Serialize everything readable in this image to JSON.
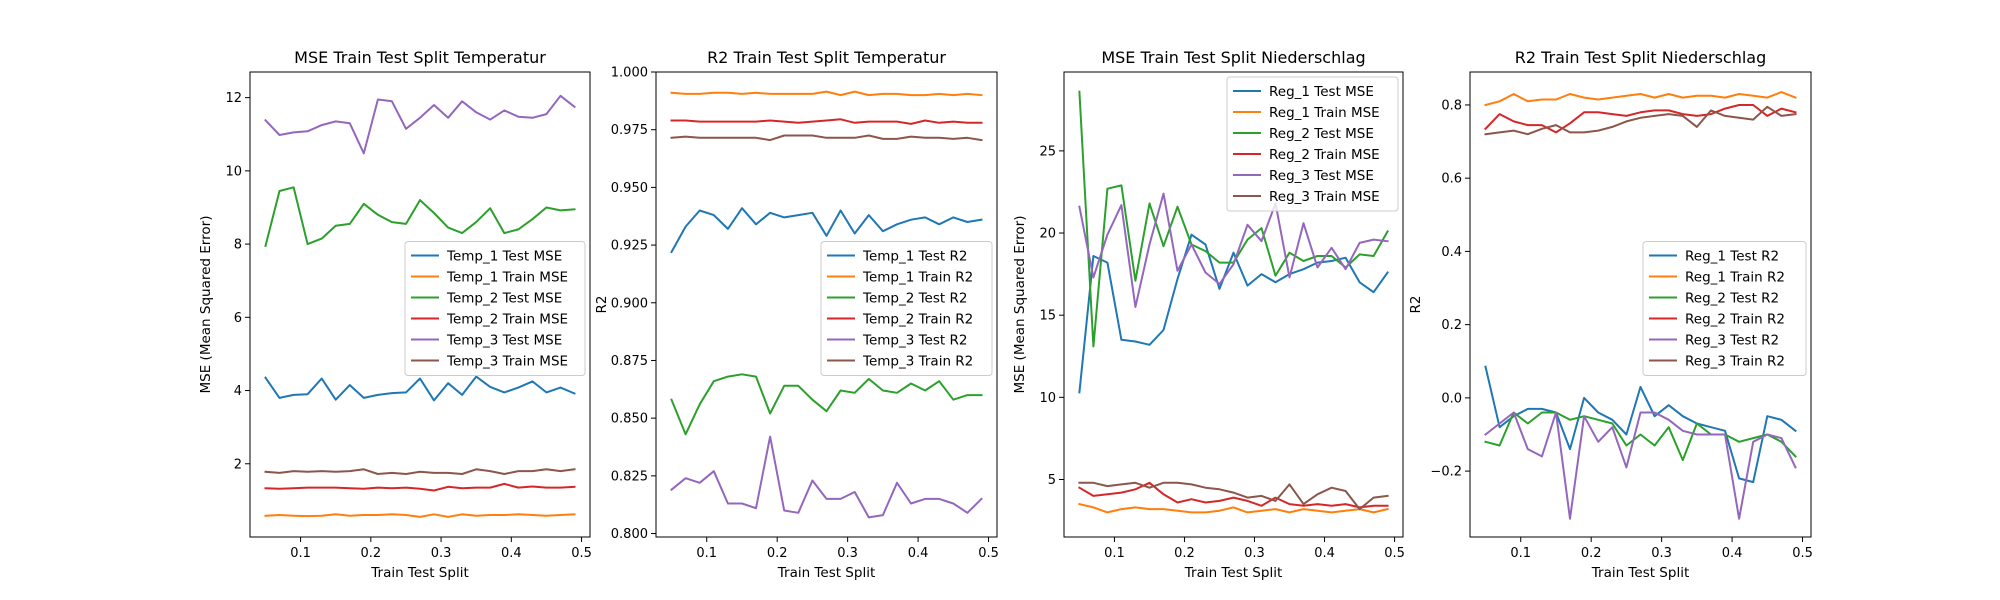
{
  "figure": {
    "background": "#ffffff"
  },
  "colors": {
    "tab_blue": "#1f77b4",
    "tab_orange": "#ff7f0e",
    "tab_green": "#2ca02c",
    "tab_red": "#d62728",
    "tab_purple": "#9467bd",
    "tab_brown": "#8c564b"
  },
  "chart_data": [
    {
      "type": "line",
      "title": "MSE Train Test Split Temperatur",
      "xlabel": "Train Test Split",
      "ylabel": "MSE (Mean Squared Error)",
      "xlim": [
        0.028,
        0.512
      ],
      "ylim": [
        0.0,
        12.7
      ],
      "xticks": [
        0.1,
        0.2,
        0.3,
        0.4,
        0.5
      ],
      "xtick_labels": [
        "0.1",
        "0.2",
        "0.3",
        "0.4",
        "0.5"
      ],
      "yticks": [
        2,
        4,
        6,
        8,
        10,
        12
      ],
      "ytick_labels": [
        "2",
        "4",
        "6",
        "8",
        "10",
        "12"
      ],
      "grid": false,
      "legend_position": "center-right",
      "x": [
        0.05,
        0.07,
        0.09,
        0.11,
        0.13,
        0.15,
        0.17,
        0.19,
        0.21,
        0.23,
        0.25,
        0.27,
        0.29,
        0.31,
        0.33,
        0.35,
        0.37,
        0.39,
        0.41,
        0.43,
        0.45,
        0.47,
        0.49
      ],
      "series": [
        {
          "name": "Temp_1 Test MSE",
          "color": "#1f77b4",
          "values": [
            4.35,
            3.8,
            3.88,
            3.9,
            4.33,
            3.75,
            4.15,
            3.8,
            3.88,
            3.93,
            3.95,
            4.33,
            3.73,
            4.2,
            3.88,
            4.38,
            4.1,
            3.95,
            4.08,
            4.25,
            3.95,
            4.08,
            3.92
          ]
        },
        {
          "name": "Temp_1 Train MSE",
          "color": "#ff7f0e",
          "values": [
            0.58,
            0.6,
            0.58,
            0.57,
            0.58,
            0.62,
            0.58,
            0.6,
            0.6,
            0.62,
            0.6,
            0.55,
            0.62,
            0.55,
            0.62,
            0.58,
            0.6,
            0.6,
            0.62,
            0.6,
            0.58,
            0.6,
            0.62
          ]
        },
        {
          "name": "Temp_2 Test MSE",
          "color": "#2ca02c",
          "values": [
            7.95,
            9.45,
            9.55,
            8.0,
            8.15,
            8.5,
            8.55,
            9.1,
            8.8,
            8.6,
            8.55,
            9.2,
            8.85,
            8.45,
            8.3,
            8.6,
            8.98,
            8.3,
            8.4,
            8.68,
            9.0,
            8.92,
            8.95
          ]
        },
        {
          "name": "Temp_2 Train MSE",
          "color": "#d62728",
          "values": [
            1.33,
            1.32,
            1.33,
            1.35,
            1.35,
            1.35,
            1.33,
            1.32,
            1.35,
            1.33,
            1.35,
            1.32,
            1.27,
            1.37,
            1.33,
            1.35,
            1.35,
            1.45,
            1.35,
            1.38,
            1.35,
            1.35,
            1.37
          ]
        },
        {
          "name": "Temp_3 Test MSE",
          "color": "#9467bd",
          "values": [
            11.38,
            10.98,
            11.05,
            11.08,
            11.25,
            11.35,
            11.3,
            10.48,
            11.95,
            11.9,
            11.15,
            11.45,
            11.8,
            11.45,
            11.9,
            11.6,
            11.4,
            11.65,
            11.48,
            11.45,
            11.55,
            12.05,
            11.75
          ]
        },
        {
          "name": "Temp_3 Train MSE",
          "color": "#8c564b",
          "values": [
            1.78,
            1.75,
            1.8,
            1.78,
            1.8,
            1.78,
            1.8,
            1.85,
            1.72,
            1.75,
            1.72,
            1.78,
            1.75,
            1.75,
            1.72,
            1.85,
            1.8,
            1.72,
            1.8,
            1.8,
            1.85,
            1.8,
            1.85
          ]
        }
      ]
    },
    {
      "type": "line",
      "title": "R2 Train Test Split Temperatur",
      "xlabel": "Train Test Split",
      "ylabel": "R2",
      "xlim": [
        0.028,
        0.512
      ],
      "ylim": [
        0.7985,
        1.0
      ],
      "xticks": [
        0.1,
        0.2,
        0.3,
        0.4,
        0.5
      ],
      "xtick_labels": [
        "0.1",
        "0.2",
        "0.3",
        "0.4",
        "0.5"
      ],
      "yticks": [
        0.8,
        0.825,
        0.85,
        0.875,
        0.9,
        0.925,
        0.95,
        0.975,
        1.0
      ],
      "ytick_labels": [
        "0.800",
        "0.825",
        "0.850",
        "0.875",
        "0.900",
        "0.925",
        "0.950",
        "0.975",
        "1.000"
      ],
      "grid": false,
      "legend_position": "center-right",
      "x": [
        0.05,
        0.07,
        0.09,
        0.11,
        0.13,
        0.15,
        0.17,
        0.19,
        0.21,
        0.23,
        0.25,
        0.27,
        0.29,
        0.31,
        0.33,
        0.35,
        0.37,
        0.39,
        0.41,
        0.43,
        0.45,
        0.47,
        0.49
      ],
      "series": [
        {
          "name": "Temp_1 Test R2",
          "color": "#1f77b4",
          "values": [
            0.922,
            0.933,
            0.94,
            0.938,
            0.932,
            0.941,
            0.934,
            0.939,
            0.937,
            0.938,
            0.939,
            0.929,
            0.94,
            0.93,
            0.938,
            0.931,
            0.934,
            0.936,
            0.937,
            0.934,
            0.937,
            0.935,
            0.936
          ]
        },
        {
          "name": "Temp_1 Train R2",
          "color": "#ff7f0e",
          "values": [
            0.991,
            0.9905,
            0.9905,
            0.991,
            0.991,
            0.9905,
            0.991,
            0.9905,
            0.9905,
            0.9905,
            0.9905,
            0.9915,
            0.99,
            0.9915,
            0.99,
            0.9905,
            0.9905,
            0.99,
            0.99,
            0.9905,
            0.99,
            0.9905,
            0.99
          ]
        },
        {
          "name": "Temp_2 Test R2",
          "color": "#2ca02c",
          "values": [
            0.858,
            0.843,
            0.856,
            0.866,
            0.868,
            0.869,
            0.868,
            0.852,
            0.864,
            0.864,
            0.858,
            0.853,
            0.862,
            0.861,
            0.867,
            0.862,
            0.861,
            0.865,
            0.862,
            0.866,
            0.858,
            0.86,
            0.86
          ]
        },
        {
          "name": "Temp_2 Train R2",
          "color": "#d62728",
          "values": [
            0.979,
            0.979,
            0.9785,
            0.9785,
            0.9785,
            0.9785,
            0.9785,
            0.979,
            0.9785,
            0.978,
            0.9785,
            0.979,
            0.9795,
            0.978,
            0.9785,
            0.9785,
            0.9785,
            0.9775,
            0.979,
            0.978,
            0.9785,
            0.978,
            0.978
          ]
        },
        {
          "name": "Temp_3 Test R2",
          "color": "#9467bd",
          "values": [
            0.819,
            0.824,
            0.822,
            0.827,
            0.813,
            0.813,
            0.811,
            0.842,
            0.81,
            0.809,
            0.823,
            0.815,
            0.815,
            0.818,
            0.807,
            0.808,
            0.822,
            0.813,
            0.815,
            0.815,
            0.813,
            0.809,
            0.815
          ]
        },
        {
          "name": "Temp_3 Train R2",
          "color": "#8c564b",
          "values": [
            0.9715,
            0.972,
            0.9715,
            0.9715,
            0.9715,
            0.9715,
            0.9715,
            0.9705,
            0.9725,
            0.9725,
            0.9725,
            0.9715,
            0.9715,
            0.9715,
            0.9725,
            0.971,
            0.971,
            0.972,
            0.9715,
            0.9715,
            0.971,
            0.9715,
            0.9705
          ]
        }
      ]
    },
    {
      "type": "line",
      "title": "MSE Train Test Split Niederschlag",
      "xlabel": "Train Test Split",
      "ylabel": "MSE (Mean Squared Error)",
      "xlim": [
        0.028,
        0.512
      ],
      "ylim": [
        1.5,
        29.8
      ],
      "xticks": [
        0.1,
        0.2,
        0.3,
        0.4,
        0.5
      ],
      "xtick_labels": [
        "0.1",
        "0.2",
        "0.3",
        "0.4",
        "0.5"
      ],
      "yticks": [
        5,
        10,
        15,
        20,
        25
      ],
      "ytick_labels": [
        "5",
        "10",
        "15",
        "20",
        "25"
      ],
      "grid": false,
      "legend_position": "top-right",
      "x": [
        0.05,
        0.07,
        0.09,
        0.11,
        0.13,
        0.15,
        0.17,
        0.19,
        0.21,
        0.23,
        0.25,
        0.27,
        0.29,
        0.31,
        0.33,
        0.35,
        0.37,
        0.39,
        0.41,
        0.43,
        0.45,
        0.47,
        0.49
      ],
      "series": [
        {
          "name": "Reg_1 Test MSE",
          "color": "#1f77b4",
          "values": [
            10.3,
            18.6,
            18.2,
            13.5,
            13.4,
            13.2,
            14.1,
            17.2,
            19.9,
            19.3,
            16.6,
            18.8,
            16.8,
            17.5,
            17.0,
            17.5,
            17.8,
            18.2,
            18.3,
            18.5,
            17.0,
            16.4,
            17.6
          ]
        },
        {
          "name": "Reg_1 Train MSE",
          "color": "#ff7f0e",
          "values": [
            3.5,
            3.3,
            3.0,
            3.2,
            3.3,
            3.2,
            3.2,
            3.1,
            3.0,
            3.0,
            3.1,
            3.3,
            3.0,
            3.1,
            3.2,
            3.0,
            3.2,
            3.1,
            3.0,
            3.1,
            3.2,
            3.0,
            3.2
          ]
        },
        {
          "name": "Reg_2 Test MSE",
          "color": "#2ca02c",
          "values": [
            28.6,
            13.1,
            22.7,
            22.9,
            17.1,
            21.8,
            19.2,
            21.6,
            19.3,
            18.9,
            18.2,
            18.2,
            19.6,
            20.3,
            17.4,
            18.8,
            18.3,
            18.6,
            18.6,
            17.9,
            18.7,
            18.6,
            20.1
          ]
        },
        {
          "name": "Reg_2 Train MSE",
          "color": "#d62728",
          "values": [
            4.5,
            4.0,
            4.1,
            4.2,
            4.4,
            4.8,
            4.1,
            3.6,
            3.8,
            3.6,
            3.7,
            3.9,
            3.7,
            3.4,
            3.9,
            3.5,
            3.4,
            3.5,
            3.4,
            3.5,
            3.3,
            3.4,
            3.4
          ]
        },
        {
          "name": "Reg_3 Test MSE",
          "color": "#9467bd",
          "values": [
            21.6,
            17.3,
            19.9,
            21.7,
            15.5,
            19.3,
            22.4,
            17.7,
            19.3,
            17.6,
            16.9,
            18.1,
            20.5,
            19.5,
            21.8,
            17.3,
            20.6,
            17.9,
            19.1,
            17.8,
            19.4,
            19.6,
            19.5
          ]
        },
        {
          "name": "Reg_3 Train MSE",
          "color": "#8c564b",
          "values": [
            4.8,
            4.8,
            4.6,
            4.7,
            4.8,
            4.5,
            4.8,
            4.8,
            4.7,
            4.5,
            4.4,
            4.2,
            3.9,
            4.0,
            3.7,
            4.7,
            3.5,
            4.1,
            4.5,
            4.3,
            3.2,
            3.9,
            4.0
          ]
        }
      ]
    },
    {
      "type": "line",
      "title": "R2 Train Test Split Niederschlag",
      "xlabel": "Train Test Split",
      "ylabel": "R2",
      "xlim": [
        0.028,
        0.512
      ],
      "ylim": [
        -0.38,
        0.89
      ],
      "xticks": [
        0.1,
        0.2,
        0.3,
        0.4,
        0.5
      ],
      "xtick_labels": [
        "0.1",
        "0.2",
        "0.3",
        "0.4",
        "0.5"
      ],
      "yticks": [
        -0.2,
        0.0,
        0.2,
        0.4,
        0.6,
        0.8
      ],
      "ytick_labels": [
        "−0.2",
        "0.0",
        "0.2",
        "0.4",
        "0.6",
        "0.8"
      ],
      "grid": false,
      "legend_position": "center-right",
      "x": [
        0.05,
        0.07,
        0.09,
        0.11,
        0.13,
        0.15,
        0.17,
        0.19,
        0.21,
        0.23,
        0.25,
        0.27,
        0.29,
        0.31,
        0.33,
        0.35,
        0.37,
        0.39,
        0.41,
        0.43,
        0.45,
        0.47,
        0.49
      ],
      "series": [
        {
          "name": "Reg_1 Test R2",
          "color": "#1f77b4",
          "values": [
            0.085,
            -0.08,
            -0.05,
            -0.03,
            -0.03,
            -0.04,
            -0.14,
            -0.0,
            -0.04,
            -0.06,
            -0.1,
            0.03,
            -0.05,
            -0.02,
            -0.05,
            -0.07,
            -0.08,
            -0.09,
            -0.22,
            -0.23,
            -0.05,
            -0.06,
            -0.09
          ]
        },
        {
          "name": "Reg_1 Train R2",
          "color": "#ff7f0e",
          "values": [
            0.8,
            0.81,
            0.83,
            0.81,
            0.815,
            0.815,
            0.83,
            0.82,
            0.815,
            0.82,
            0.825,
            0.83,
            0.82,
            0.83,
            0.82,
            0.825,
            0.825,
            0.82,
            0.83,
            0.825,
            0.82,
            0.835,
            0.82
          ]
        },
        {
          "name": "Reg_2 Test R2",
          "color": "#2ca02c",
          "values": [
            -0.12,
            -0.13,
            -0.04,
            -0.07,
            -0.04,
            -0.04,
            -0.06,
            -0.05,
            -0.06,
            -0.07,
            -0.13,
            -0.1,
            -0.13,
            -0.08,
            -0.17,
            -0.07,
            -0.1,
            -0.1,
            -0.12,
            -0.11,
            -0.1,
            -0.12,
            -0.16
          ]
        },
        {
          "name": "Reg_2 Train R2",
          "color": "#d62728",
          "values": [
            0.735,
            0.775,
            0.755,
            0.745,
            0.745,
            0.725,
            0.75,
            0.78,
            0.78,
            0.775,
            0.77,
            0.78,
            0.785,
            0.785,
            0.775,
            0.77,
            0.775,
            0.79,
            0.8,
            0.8,
            0.77,
            0.79,
            0.78
          ]
        },
        {
          "name": "Reg_3 Test R2",
          "color": "#9467bd",
          "values": [
            -0.1,
            -0.07,
            -0.04,
            -0.14,
            -0.16,
            -0.04,
            -0.33,
            -0.05,
            -0.12,
            -0.08,
            -0.19,
            -0.04,
            -0.04,
            -0.06,
            -0.09,
            -0.1,
            -0.1,
            -0.1,
            -0.33,
            -0.12,
            -0.1,
            -0.11,
            -0.19
          ]
        },
        {
          "name": "Reg_3 Train R2",
          "color": "#8c564b",
          "values": [
            0.72,
            0.725,
            0.73,
            0.72,
            0.735,
            0.745,
            0.725,
            0.725,
            0.73,
            0.74,
            0.755,
            0.765,
            0.77,
            0.775,
            0.77,
            0.74,
            0.785,
            0.77,
            0.765,
            0.76,
            0.795,
            0.77,
            0.775
          ]
        }
      ]
    }
  ]
}
